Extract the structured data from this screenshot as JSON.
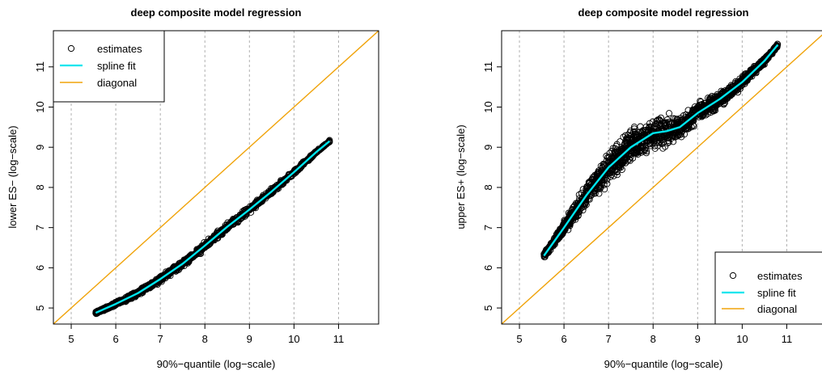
{
  "chart_data": [
    {
      "type": "scatter",
      "title": "deep composite model regression",
      "xlabel": "90%−quantile (log−scale)",
      "ylabel": "lower ES− (log−scale)",
      "xlim": [
        4.6,
        11.9
      ],
      "ylim": [
        4.6,
        11.9
      ],
      "x_ticks": [
        "5",
        "6",
        "7",
        "8",
        "9",
        "10",
        "11"
      ],
      "y_ticks": [
        "5",
        "6",
        "7",
        "8",
        "9",
        "10",
        "11"
      ],
      "vertical_grid": true,
      "legend_position": "top-left",
      "legend": {
        "estimates": "estimates",
        "spline": "spline fit",
        "diagonal": "diagonal"
      },
      "colors": {
        "points": "#000000",
        "spline": "#00e5ee",
        "diagonal": "#f0a30a",
        "grid": "#b0b0b0"
      },
      "series": [
        {
          "name": "spline fit",
          "x": [
            5.55,
            6.0,
            6.5,
            7.0,
            7.5,
            8.0,
            8.5,
            9.0,
            9.5,
            10.0,
            10.5,
            10.8
          ],
          "y": [
            4.88,
            5.1,
            5.37,
            5.72,
            6.1,
            6.55,
            7.02,
            7.45,
            7.9,
            8.38,
            8.88,
            9.15
          ]
        },
        {
          "name": "diagonal",
          "x": [
            4.6,
            11.9
          ],
          "y": [
            4.6,
            11.9
          ]
        },
        {
          "name": "estimates",
          "band_x": [
            5.55,
            6.0,
            6.5,
            7.0,
            7.5,
            8.0,
            8.5,
            9.0,
            9.5,
            10.0,
            10.5,
            10.8
          ],
          "band_width": [
            0.04,
            0.07,
            0.09,
            0.1,
            0.12,
            0.13,
            0.13,
            0.12,
            0.1,
            0.08,
            0.05,
            0.03
          ]
        }
      ]
    },
    {
      "type": "scatter",
      "title": "deep composite model regression",
      "xlabel": "90%−quantile (log−scale)",
      "ylabel": "upper ES+ (log−scale)",
      "xlim": [
        4.6,
        11.9
      ],
      "ylim": [
        4.6,
        11.9
      ],
      "x_ticks": [
        "5",
        "6",
        "7",
        "8",
        "9",
        "10",
        "11"
      ],
      "y_ticks": [
        "5",
        "6",
        "7",
        "8",
        "9",
        "10",
        "11"
      ],
      "vertical_grid": true,
      "legend_position": "bottom-right",
      "legend": {
        "estimates": "estimates",
        "spline": "spline fit",
        "diagonal": "diagonal"
      },
      "colors": {
        "points": "#000000",
        "spline": "#00e5ee",
        "diagonal": "#f0a30a",
        "grid": "#b0b0b0"
      },
      "series": [
        {
          "name": "spline fit",
          "x": [
            5.55,
            6.0,
            6.5,
            7.0,
            7.5,
            8.0,
            8.3,
            8.6,
            9.0,
            9.5,
            10.0,
            10.5,
            10.8
          ],
          "y": [
            6.3,
            7.0,
            7.8,
            8.5,
            9.0,
            9.35,
            9.4,
            9.5,
            9.85,
            10.2,
            10.62,
            11.15,
            11.55
          ]
        },
        {
          "name": "diagonal",
          "x": [
            4.6,
            11.9
          ],
          "y": [
            4.6,
            11.9
          ]
        },
        {
          "name": "estimates",
          "band_x": [
            5.55,
            6.0,
            6.5,
            7.0,
            7.5,
            8.0,
            8.3,
            8.6,
            9.0,
            9.5,
            10.0,
            10.5,
            10.8
          ],
          "band_width": [
            0.08,
            0.2,
            0.35,
            0.5,
            0.55,
            0.55,
            0.55,
            0.45,
            0.35,
            0.25,
            0.18,
            0.1,
            0.05
          ]
        }
      ]
    }
  ]
}
